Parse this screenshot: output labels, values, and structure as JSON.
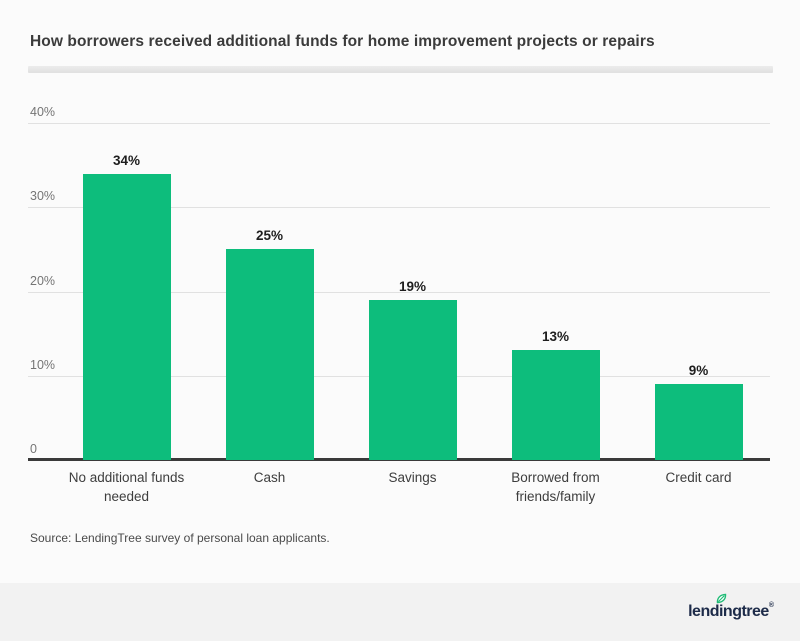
{
  "page": {
    "source_note": "Source: LendingTree survey of personal loan applicants.",
    "background_color": "#fbfbfb",
    "footer_background_color": "#f2f2f2"
  },
  "brand": {
    "logo_text": "lendingtree",
    "registered_mark": "®",
    "logo_color": "#1d2b49",
    "leaf_color": "#21bc77"
  },
  "chart_data": {
    "type": "bar",
    "title": "How borrowers received additional funds for home improvement projects or repairs",
    "categories": [
      "No additional funds needed",
      "Cash",
      "Savings",
      "Borrowed from friends/family",
      "Credit card"
    ],
    "values": [
      34,
      25,
      19,
      13,
      9
    ],
    "value_labels": [
      "34%",
      "25%",
      "19%",
      "13%",
      "9%"
    ],
    "y_ticks": [
      "40%",
      "30%",
      "20%",
      "10%",
      "0"
    ],
    "y_tick_values": [
      40,
      30,
      20,
      10,
      0
    ],
    "ylim": [
      0,
      40
    ],
    "xlabel": "",
    "ylabel": "",
    "grid": true,
    "legend": false,
    "bar_color": "#0dbd7c",
    "axis_line_color": "#3a3a3a",
    "gridline_color": "#e1e1e1"
  }
}
